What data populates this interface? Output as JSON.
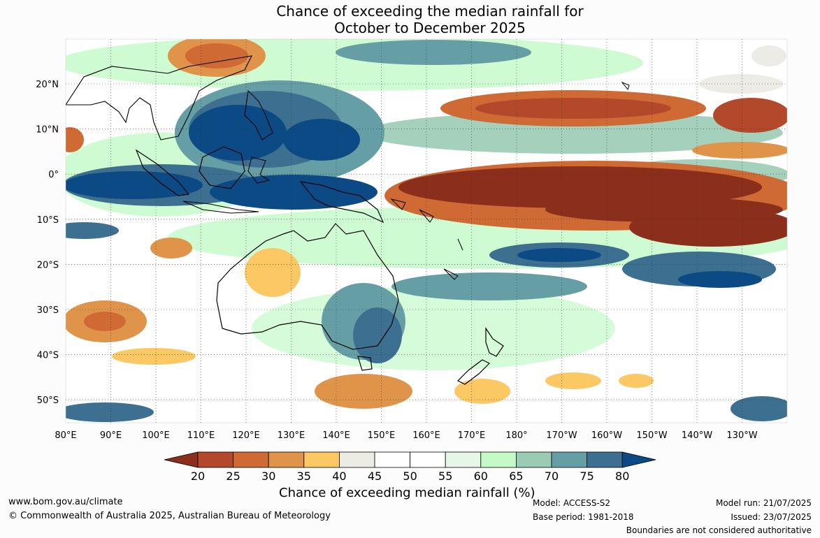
{
  "title": {
    "line1": "Chance of exceeding the median rainfall for",
    "line2": "October to December 2025"
  },
  "map": {
    "lat_labels": [
      "20°N",
      "10°N",
      "0°",
      "10°S",
      "20°S",
      "30°S",
      "40°S",
      "50°S"
    ],
    "lon_labels": [
      "80°E",
      "90°E",
      "100°E",
      "110°E",
      "120°E",
      "130°E",
      "140°E",
      "150°E",
      "160°E",
      "170°E",
      "180°",
      "170°W",
      "160°W",
      "150°W",
      "140°W",
      "130°W"
    ]
  },
  "colorbar": {
    "title": "Chance of exceeding median rainfall (%)",
    "ticks": [
      "20",
      "25",
      "30",
      "35",
      "40",
      "45",
      "50",
      "55",
      "60",
      "65",
      "70",
      "75",
      "80"
    ],
    "colors": [
      "#8b2f1c",
      "#b4482a",
      "#cf6a35",
      "#e0944a",
      "#fbc864",
      "#ecebe6",
      "#ffffff",
      "#ffffff",
      "#e7f7e7",
      "#c3fac8",
      "#9acbb5",
      "#669ea5",
      "#3d7090",
      "#0b4a85"
    ]
  },
  "footer": {
    "url": "www.bom.gov.au/climate",
    "copyright": "© Commonwealth of Australia 2025, Australian Bureau of Meteorology",
    "model": "Model: ACCESS-S2",
    "base_period": "Base period: 1981-2018",
    "model_run": "Model run: 21/07/2025",
    "issued": "Issued: 23/07/2025",
    "boundaries": "Boundaries are not considered authoritative"
  }
}
